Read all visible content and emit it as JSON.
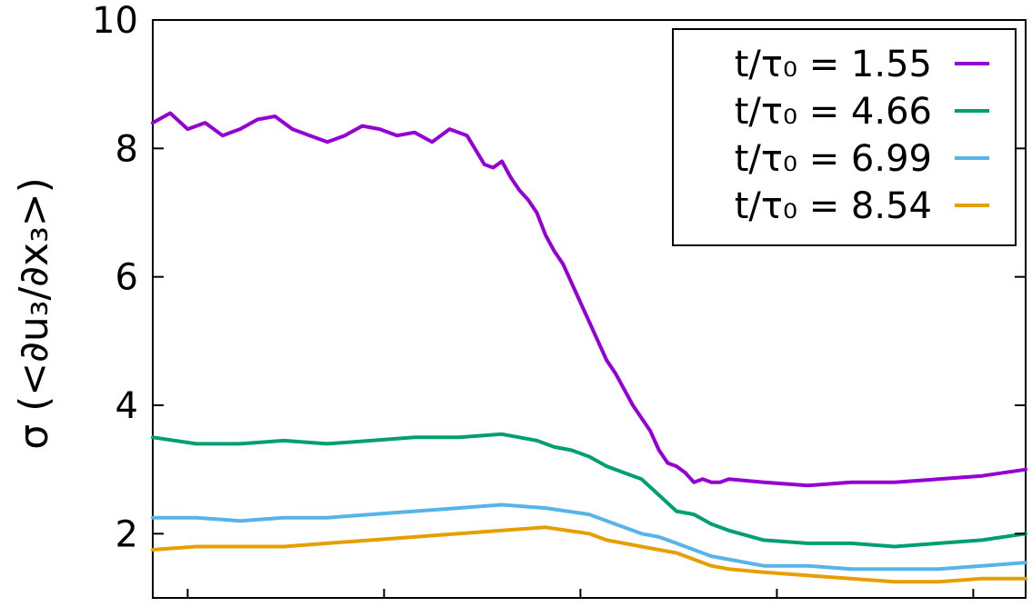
{
  "chart_data": {
    "type": "line",
    "ylabel": "σ (<∂u₃/∂x₃>)",
    "ylim": [
      1,
      10
    ],
    "xlim": [
      0,
      1
    ],
    "yticks": [
      2,
      4,
      6,
      8,
      10
    ],
    "ytick_labels": [
      "2",
      "4",
      "6",
      "8",
      "10"
    ],
    "xticks": [
      0.04,
      0.265,
      0.49,
      0.715,
      0.94
    ],
    "grid": false,
    "legend_position": "top-right",
    "series": [
      {
        "name": "t/τ₀ = 1.55",
        "color": "#9400d3",
        "x": [
          0,
          0.02,
          0.04,
          0.06,
          0.08,
          0.1,
          0.12,
          0.14,
          0.16,
          0.18,
          0.2,
          0.22,
          0.24,
          0.26,
          0.28,
          0.3,
          0.32,
          0.34,
          0.36,
          0.38,
          0.39,
          0.4,
          0.41,
          0.42,
          0.43,
          0.44,
          0.45,
          0.46,
          0.47,
          0.48,
          0.49,
          0.5,
          0.51,
          0.52,
          0.53,
          0.54,
          0.55,
          0.56,
          0.57,
          0.58,
          0.59,
          0.6,
          0.61,
          0.62,
          0.63,
          0.64,
          0.65,
          0.66,
          0.7,
          0.75,
          0.8,
          0.85,
          0.9,
          0.95,
          1.0
        ],
        "y": [
          8.4,
          8.55,
          8.3,
          8.4,
          8.2,
          8.3,
          8.45,
          8.5,
          8.3,
          8.2,
          8.1,
          8.2,
          8.35,
          8.3,
          8.2,
          8.25,
          8.1,
          8.3,
          8.2,
          7.75,
          7.7,
          7.8,
          7.55,
          7.35,
          7.2,
          7.0,
          6.65,
          6.4,
          6.2,
          5.9,
          5.6,
          5.3,
          5.0,
          4.7,
          4.5,
          4.25,
          4.0,
          3.8,
          3.6,
          3.3,
          3.1,
          3.05,
          2.95,
          2.8,
          2.85,
          2.8,
          2.8,
          2.85,
          2.8,
          2.75,
          2.8,
          2.8,
          2.85,
          2.9,
          3.0
        ]
      },
      {
        "name": "t/τ₀ = 4.66",
        "color": "#009e73",
        "x": [
          0,
          0.05,
          0.1,
          0.15,
          0.2,
          0.25,
          0.3,
          0.35,
          0.4,
          0.42,
          0.44,
          0.46,
          0.48,
          0.5,
          0.52,
          0.54,
          0.56,
          0.58,
          0.6,
          0.62,
          0.64,
          0.66,
          0.7,
          0.75,
          0.8,
          0.85,
          0.9,
          0.95,
          1.0
        ],
        "y": [
          3.5,
          3.4,
          3.4,
          3.45,
          3.4,
          3.45,
          3.5,
          3.5,
          3.55,
          3.5,
          3.45,
          3.35,
          3.3,
          3.2,
          3.05,
          2.95,
          2.85,
          2.6,
          2.35,
          2.3,
          2.15,
          2.05,
          1.9,
          1.85,
          1.85,
          1.8,
          1.85,
          1.9,
          2.0
        ]
      },
      {
        "name": "t/τ₀ = 6.99",
        "color": "#56b4e9",
        "x": [
          0,
          0.05,
          0.1,
          0.15,
          0.2,
          0.25,
          0.3,
          0.35,
          0.4,
          0.45,
          0.5,
          0.52,
          0.54,
          0.56,
          0.58,
          0.6,
          0.62,
          0.64,
          0.66,
          0.7,
          0.75,
          0.8,
          0.85,
          0.9,
          0.95,
          1.0
        ],
        "y": [
          2.25,
          2.25,
          2.2,
          2.25,
          2.25,
          2.3,
          2.35,
          2.4,
          2.45,
          2.4,
          2.3,
          2.2,
          2.1,
          2.0,
          1.95,
          1.85,
          1.75,
          1.65,
          1.6,
          1.5,
          1.5,
          1.45,
          1.45,
          1.45,
          1.5,
          1.55
        ]
      },
      {
        "name": "t/τ₀ = 8.54",
        "color": "#e69f00",
        "x": [
          0,
          0.05,
          0.1,
          0.15,
          0.2,
          0.25,
          0.3,
          0.35,
          0.4,
          0.45,
          0.5,
          0.52,
          0.54,
          0.56,
          0.58,
          0.6,
          0.62,
          0.64,
          0.66,
          0.7,
          0.75,
          0.8,
          0.85,
          0.9,
          0.95,
          1.0
        ],
        "y": [
          1.75,
          1.8,
          1.8,
          1.8,
          1.85,
          1.9,
          1.95,
          2.0,
          2.05,
          2.1,
          2.0,
          1.9,
          1.85,
          1.8,
          1.75,
          1.7,
          1.6,
          1.5,
          1.45,
          1.4,
          1.35,
          1.3,
          1.25,
          1.25,
          1.3,
          1.3
        ]
      }
    ]
  }
}
